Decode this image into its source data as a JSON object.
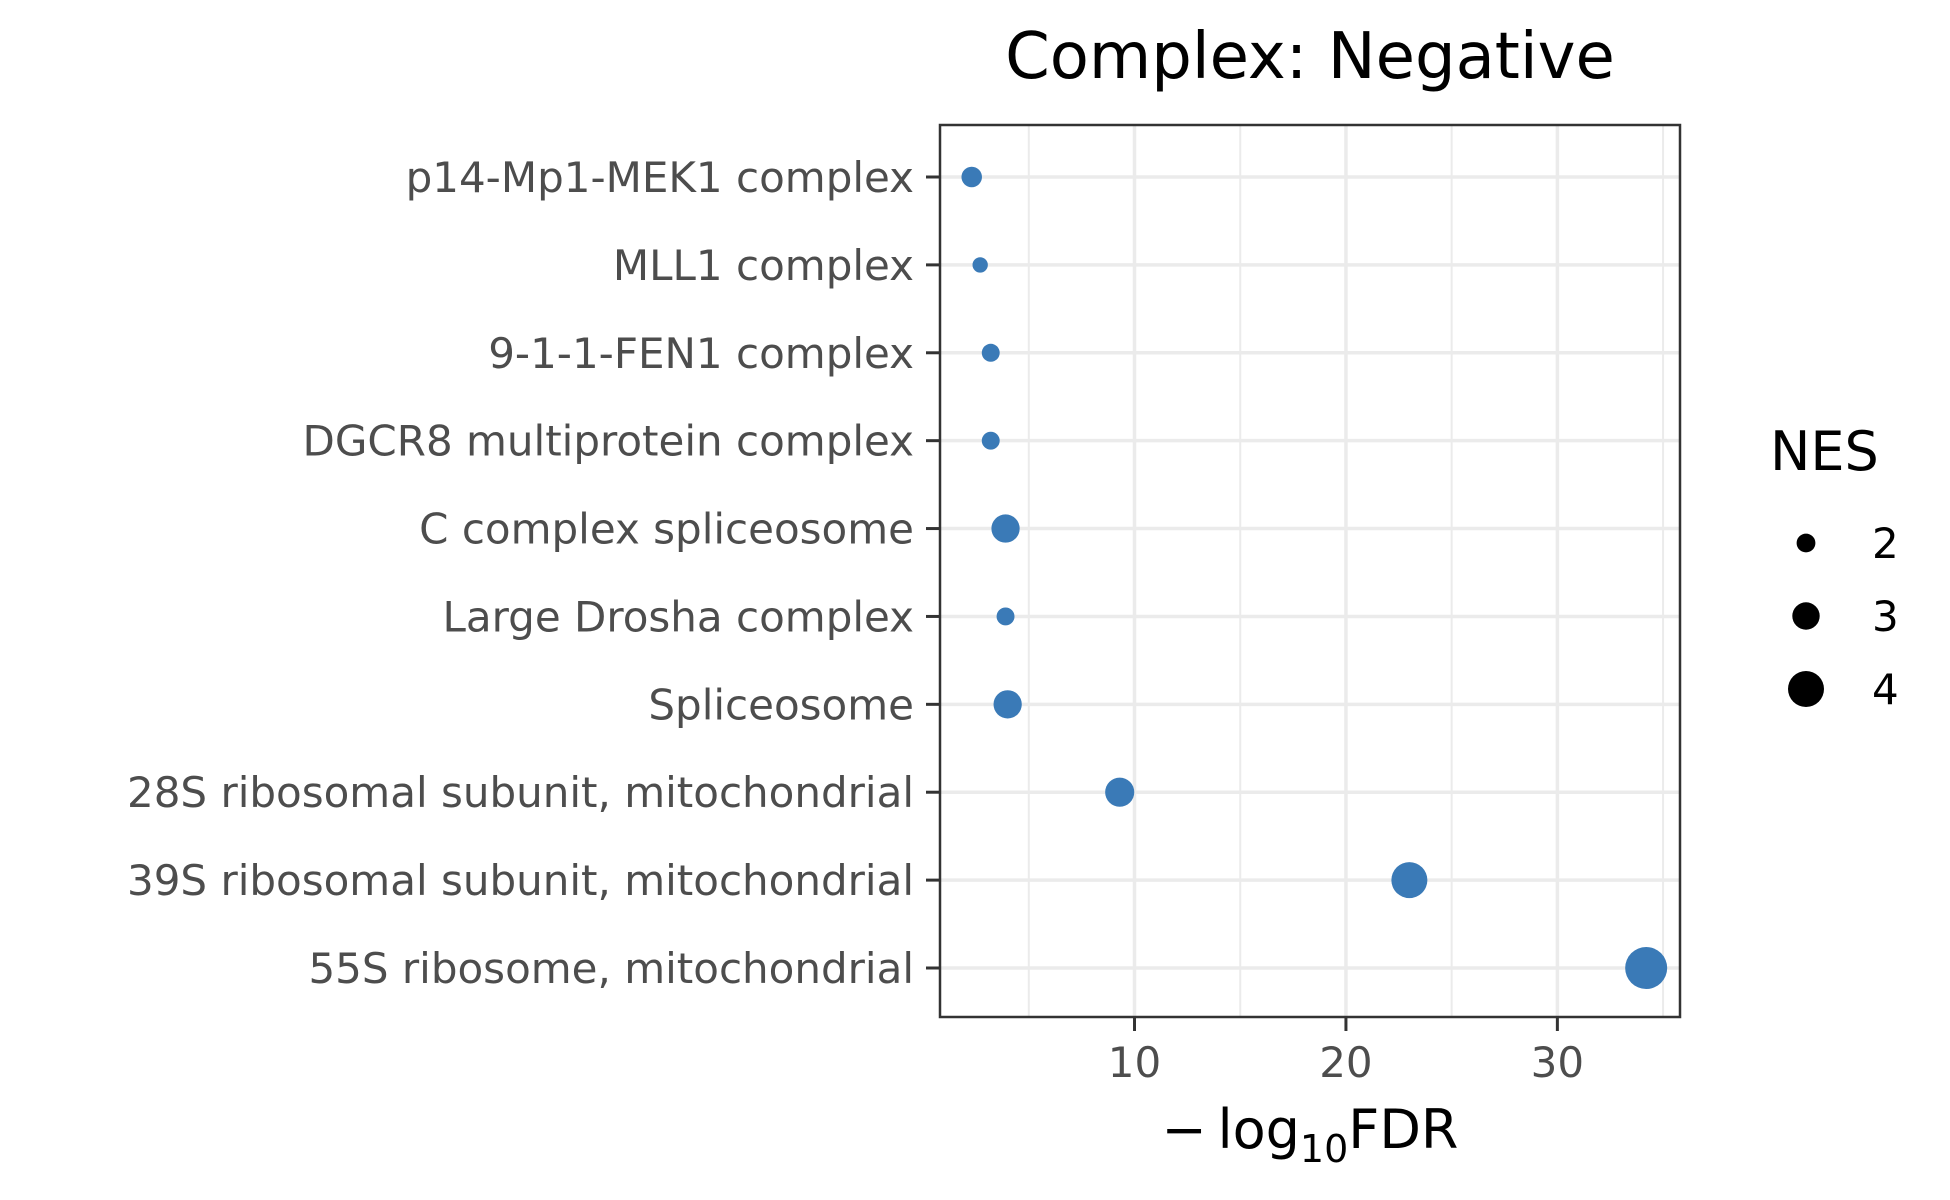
{
  "chart_data": {
    "type": "scatter",
    "title": "Complex: Negative",
    "xlabel": {
      "prefix": "− log",
      "subscript": "10",
      "suffix": "FDR"
    },
    "ylabel": "",
    "xlim": [
      0.8,
      35.8
    ],
    "xticks": [
      10,
      20,
      30
    ],
    "grid": true,
    "color": "#3a7ab7",
    "categories": [
      "p14-Mp1-MEK1 complex",
      "MLL1 complex",
      "9-1-1-FEN1 complex",
      "DGCR8 multiprotein complex",
      "C complex spliceosome",
      "Large Drosha complex",
      "Spliceosome",
      "28S ribosomal subunit, mitochondrial",
      "39S ribosomal subunit, mitochondrial",
      "55S ribosome, mitochondrial"
    ],
    "x": [
      2.3,
      2.7,
      3.2,
      3.2,
      3.9,
      3.9,
      4.0,
      9.3,
      23.0,
      34.2
    ],
    "size_values": [
      2.2,
      1.6,
      1.9,
      1.9,
      3.1,
      1.9,
      3.1,
      3.2,
      4.0,
      4.7
    ],
    "legend": {
      "title": "NES",
      "position": "right",
      "values": [
        2,
        3,
        4
      ]
    }
  }
}
